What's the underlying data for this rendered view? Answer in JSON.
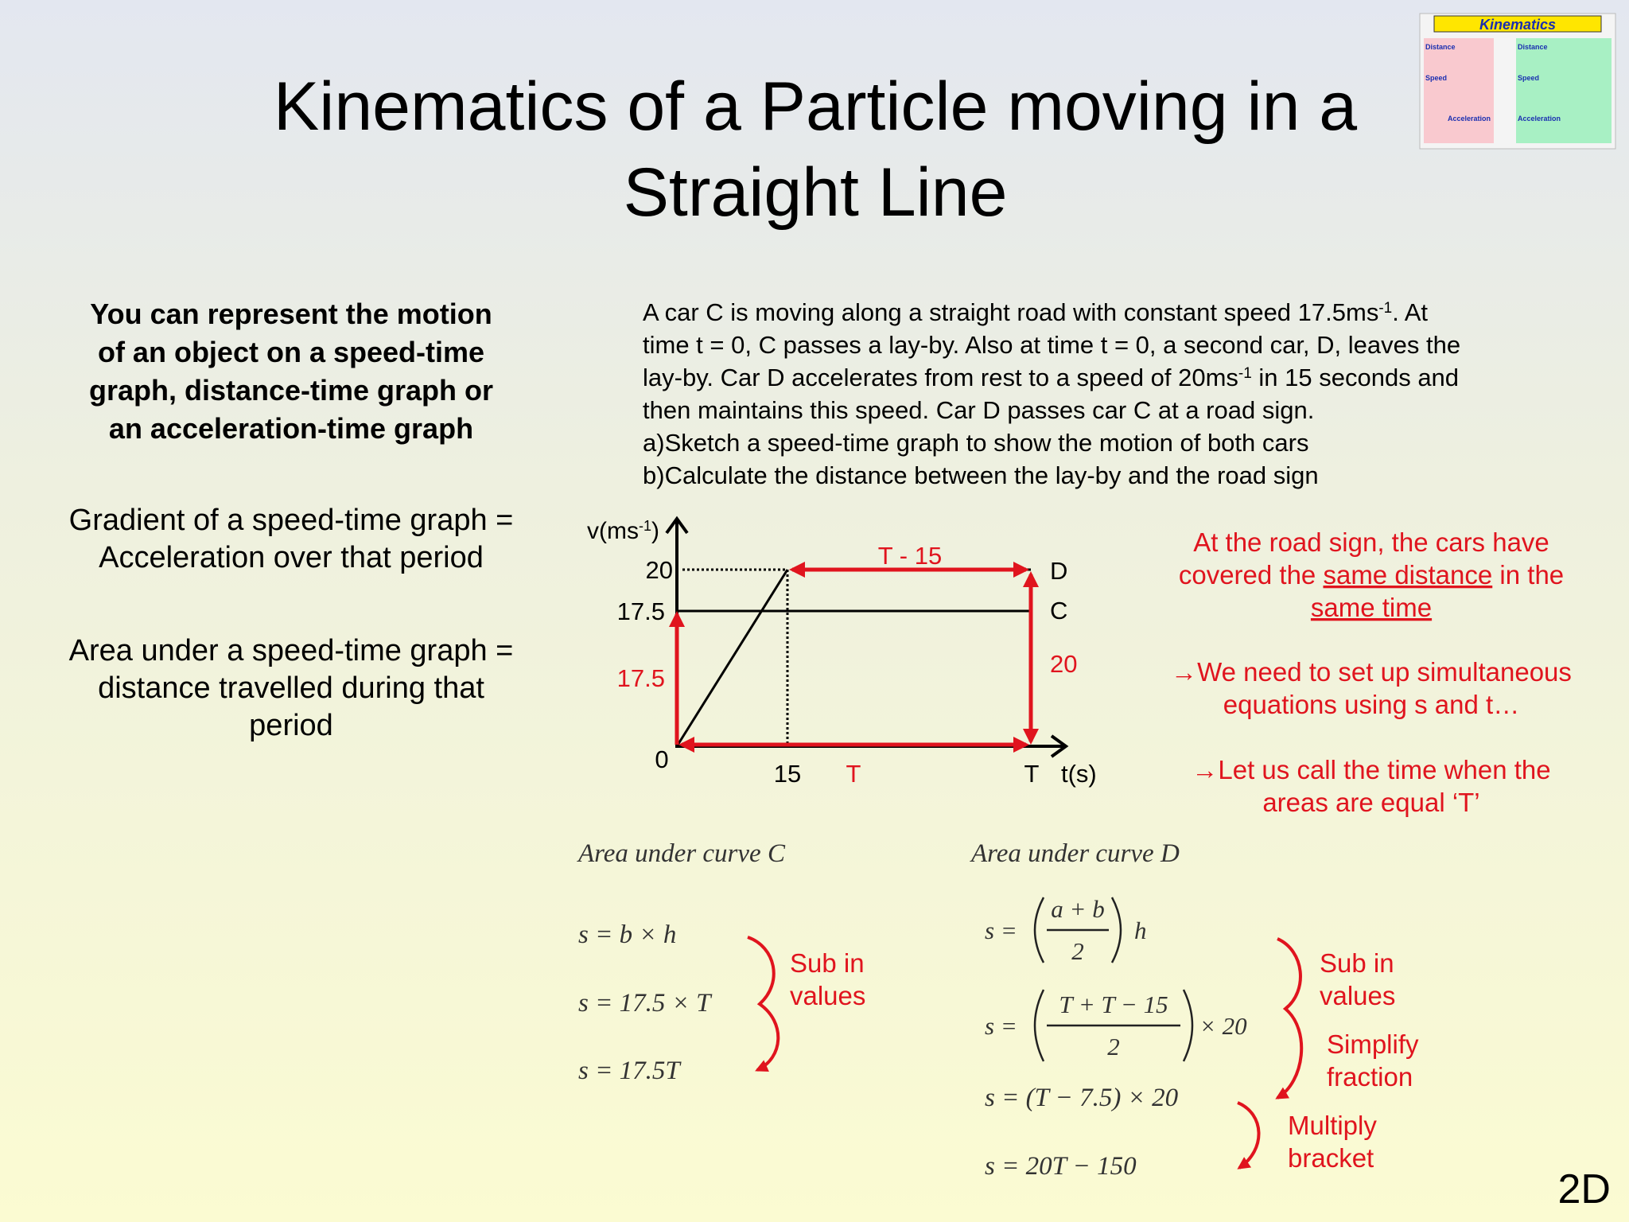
{
  "header": {
    "title": [
      "Kinematics of a Particle moving in a",
      "Straight Line"
    ]
  },
  "thumbnail": {
    "title": "Kinematics",
    "labels": [
      "Distance",
      "Distance",
      "Speed",
      "Speed",
      "Acceleration",
      "Acceleration"
    ]
  },
  "left": {
    "intro": [
      "You can represent the motion",
      "of an object on a speed-time",
      "graph, distance-time graph or",
      "an acceleration-time graph"
    ],
    "gradient": [
      "Gradient of a speed-time graph =",
      "Acceleration over that period"
    ],
    "area": [
      "Area under a speed-time graph =",
      "distance travelled during that",
      "period"
    ]
  },
  "problem": {
    "lines": [
      [
        "A car C is moving along a straight road with constant speed 17.5ms",
        {
          "sup": "-1"
        },
        ". At"
      ],
      "time t = 0, C passes a lay-by. Also at time t = 0, a second car, D, leaves the",
      [
        "lay-by. Car D accelerates from rest to a speed of 20ms",
        {
          "sup": "-1"
        },
        " in 15 seconds and"
      ],
      "then maintains this speed. Car D passes car C at a road sign.",
      "a)Sketch a speed-time graph to show the motion of both cars",
      "b)Calculate the distance between the lay-by and the road sign"
    ]
  },
  "graph": {
    "y_axis_label": [
      "v(ms",
      {
        "sup": "-1"
      },
      ")"
    ],
    "x_axis_label": "t(s)",
    "y_ticks": [
      "20",
      "17.5"
    ],
    "origin": "0",
    "x_ticks": [
      "15",
      "T"
    ],
    "line_labels": [
      "D",
      "C"
    ],
    "red_labels": {
      "top": "T - 15",
      "left": "17.5",
      "right": "20",
      "bottom": "T"
    }
  },
  "notes": {
    "blocks": [
      [
        "At the road sign, the cars have",
        [
          "covered the ",
          {
            "text": "same distance",
            "underline": true
          },
          " in the"
        ],
        [
          {
            "text": "same time",
            "underline": true
          }
        ]
      ],
      [
        "→We need to set up simultaneous",
        "equations using s and t…"
      ],
      [
        "→Let us call the time when the",
        "areas are equal ‘T’"
      ]
    ]
  },
  "working_c": {
    "heading": "Area under curve C",
    "equations": [
      "s = b × h",
      "s = 17.5 × T",
      "s = 17.5T"
    ],
    "annotation": [
      "Sub in",
      "values"
    ]
  },
  "working_d": {
    "heading": "Area under curve D",
    "fractions": [
      {
        "lhs": "s =",
        "numerator": "a + b",
        "denominator": "2",
        "rhs": "h"
      },
      {
        "lhs": "s =",
        "numerator": "T + T − 15",
        "denominator": "2",
        "rhs": "× 20"
      }
    ],
    "equations": [
      "s = (T − 7.5) × 20",
      "s = 20T − 150"
    ],
    "annotations": [
      [
        "Sub in",
        "values"
      ],
      [
        "Simplify",
        "fraction"
      ],
      [
        "Multiply",
        "bracket"
      ]
    ]
  },
  "footer": {
    "slide_code": "2D"
  }
}
